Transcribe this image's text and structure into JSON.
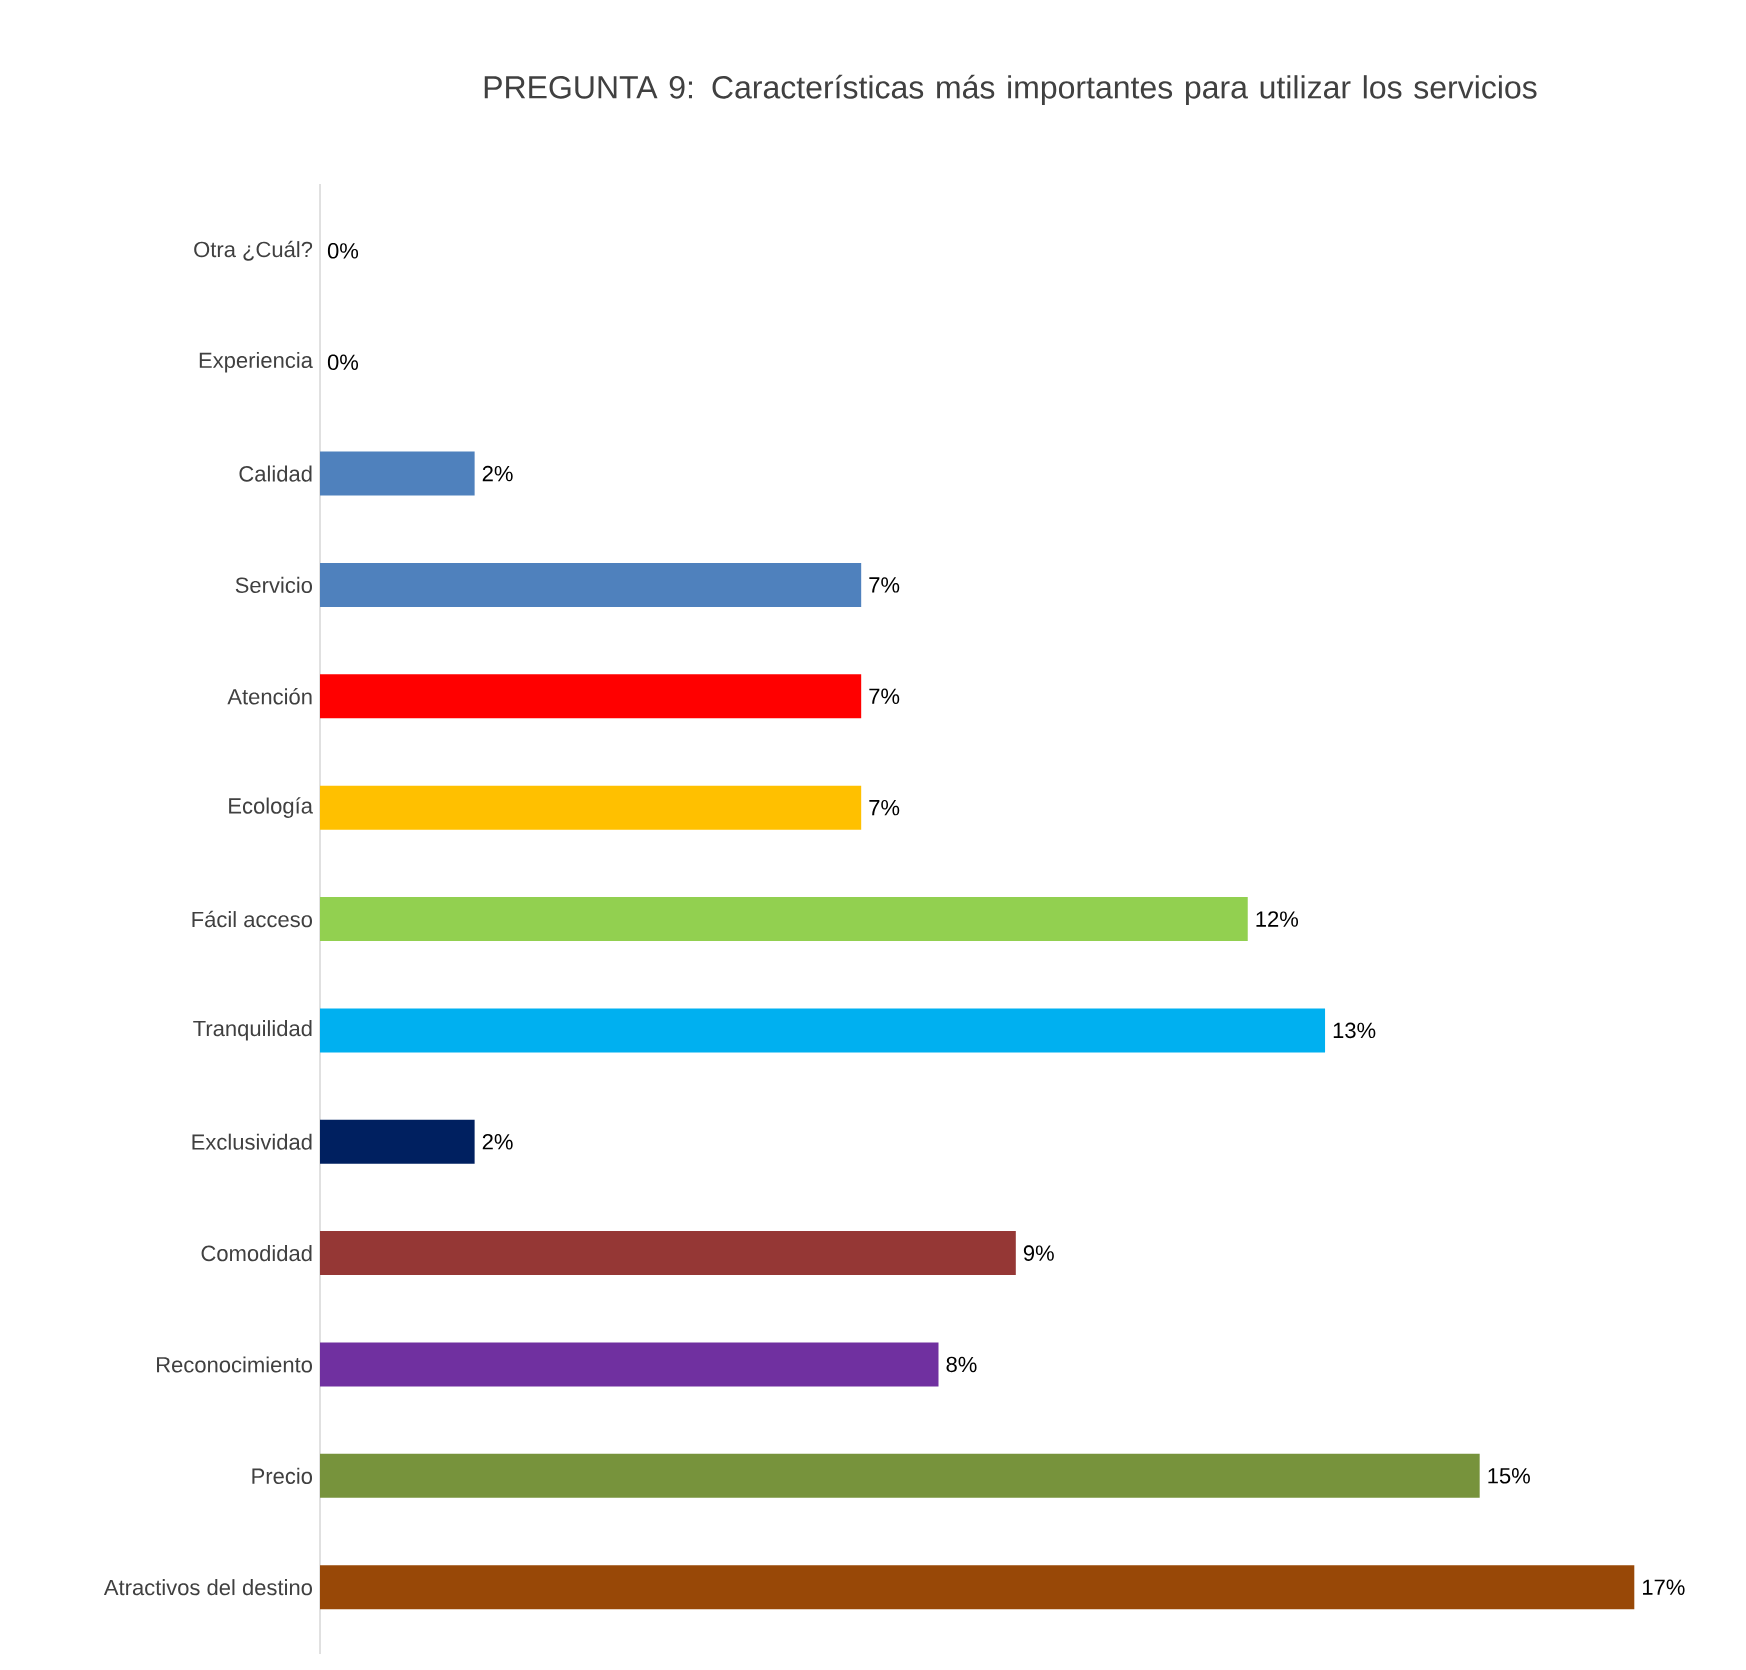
{
  "chart_data": {
    "type": "bar",
    "orientation": "horizontal",
    "title": "PREGUNTA 9: Características más importantes para utilizar los servicios",
    "categories": [
      "Otra ¿Cuál?",
      "Experiencia",
      "Calidad",
      "Servicio",
      "Atención",
      "Ecología",
      "Fácil acceso",
      "Tranquilidad",
      "Exclusividad",
      "Comodidad",
      "Reconocimiento",
      "Precio",
      "Atractivos del destino"
    ],
    "values": [
      0,
      0,
      2,
      7,
      7,
      7,
      12,
      13,
      2,
      9,
      8,
      15,
      17
    ],
    "value_labels": [
      "0%",
      "0%",
      "2%",
      "7%",
      "7%",
      "7%",
      "12%",
      "13%",
      "2%",
      "9%",
      "8%",
      "15%",
      "17%"
    ],
    "colors": [
      "#4f81bd",
      "#4f81bd",
      "#4f81bd",
      "#4f81bd",
      "#ff0000",
      "#ffc000",
      "#92d050",
      "#00b0f0",
      "#002060",
      "#953735",
      "#7030a0",
      "#77933c",
      "#984807"
    ]
  }
}
